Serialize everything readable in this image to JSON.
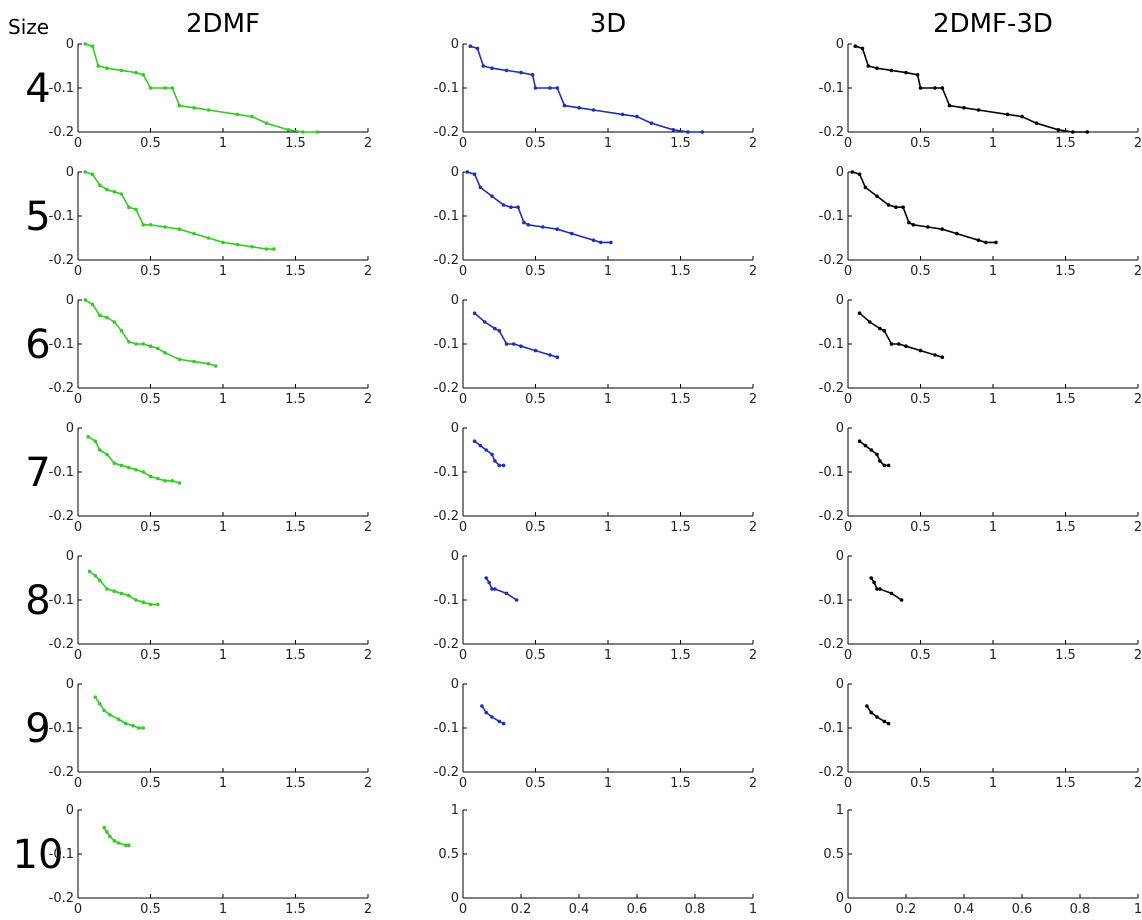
{
  "header": {
    "row_header": "Size"
  },
  "columns": [
    {
      "title": "2DMF",
      "color": "#33cc22"
    },
    {
      "title": "3D",
      "color": "#1f2fb8"
    },
    {
      "title": "2DMF-3D",
      "color": "#000000"
    }
  ],
  "rows": [
    "4",
    "5",
    "6",
    "7",
    "8",
    "9",
    "10"
  ],
  "chart_data": {
    "type": "line",
    "panels": [
      {
        "row": "4",
        "column": "2DMF",
        "x": [
          0.05,
          0.1,
          0.14,
          0.2,
          0.3,
          0.4,
          0.45,
          0.5,
          0.6,
          0.65,
          0.7,
          0.8,
          0.9,
          1.1,
          1.2,
          1.3,
          1.45,
          1.55,
          1.65
        ],
        "y": [
          0,
          -0.005,
          -0.05,
          -0.055,
          -0.06,
          -0.065,
          -0.07,
          -0.1,
          -0.1,
          -0.1,
          -0.14,
          -0.145,
          -0.15,
          -0.16,
          -0.165,
          -0.18,
          -0.195,
          -0.2,
          -0.2
        ]
      },
      {
        "row": "4",
        "column": "3D",
        "x": [
          0.05,
          0.1,
          0.14,
          0.2,
          0.3,
          0.4,
          0.48,
          0.5,
          0.6,
          0.65,
          0.7,
          0.8,
          0.9,
          1.1,
          1.2,
          1.3,
          1.45,
          1.55,
          1.65
        ],
        "y": [
          -0.005,
          -0.01,
          -0.05,
          -0.055,
          -0.06,
          -0.065,
          -0.07,
          -0.1,
          -0.1,
          -0.1,
          -0.14,
          -0.145,
          -0.15,
          -0.16,
          -0.165,
          -0.18,
          -0.195,
          -0.2,
          -0.2
        ]
      },
      {
        "row": "4",
        "column": "2DMF-3D",
        "x": [
          0.05,
          0.1,
          0.14,
          0.2,
          0.3,
          0.4,
          0.48,
          0.5,
          0.6,
          0.65,
          0.7,
          0.8,
          0.9,
          1.1,
          1.2,
          1.3,
          1.45,
          1.55,
          1.65
        ],
        "y": [
          -0.005,
          -0.01,
          -0.05,
          -0.055,
          -0.06,
          -0.065,
          -0.07,
          -0.1,
          -0.1,
          -0.1,
          -0.14,
          -0.145,
          -0.15,
          -0.16,
          -0.165,
          -0.18,
          -0.195,
          -0.2,
          -0.2
        ]
      },
      {
        "row": "5",
        "column": "2DMF",
        "x": [
          0.05,
          0.1,
          0.15,
          0.2,
          0.25,
          0.3,
          0.35,
          0.4,
          0.45,
          0.5,
          0.6,
          0.7,
          0.8,
          0.9,
          1.0,
          1.1,
          1.2,
          1.3,
          1.35
        ],
        "y": [
          0,
          -0.005,
          -0.03,
          -0.04,
          -0.045,
          -0.05,
          -0.08,
          -0.085,
          -0.12,
          -0.12,
          -0.125,
          -0.13,
          -0.14,
          -0.15,
          -0.16,
          -0.165,
          -0.17,
          -0.175,
          -0.175
        ]
      },
      {
        "row": "5",
        "column": "3D",
        "x": [
          0.03,
          0.08,
          0.12,
          0.2,
          0.28,
          0.33,
          0.38,
          0.42,
          0.45,
          0.55,
          0.65,
          0.75,
          0.9,
          0.95,
          1.02
        ],
        "y": [
          0,
          -0.005,
          -0.035,
          -0.055,
          -0.075,
          -0.08,
          -0.08,
          -0.115,
          -0.12,
          -0.125,
          -0.13,
          -0.14,
          -0.155,
          -0.16,
          -0.16
        ]
      },
      {
        "row": "5",
        "column": "2DMF-3D",
        "x": [
          0.03,
          0.08,
          0.12,
          0.2,
          0.28,
          0.33,
          0.38,
          0.42,
          0.45,
          0.55,
          0.65,
          0.75,
          0.9,
          0.95,
          1.02
        ],
        "y": [
          0,
          -0.005,
          -0.035,
          -0.055,
          -0.075,
          -0.08,
          -0.08,
          -0.115,
          -0.12,
          -0.125,
          -0.13,
          -0.14,
          -0.155,
          -0.16,
          -0.16
        ]
      },
      {
        "row": "6",
        "column": "2DMF",
        "x": [
          0.05,
          0.1,
          0.15,
          0.2,
          0.25,
          0.3,
          0.35,
          0.4,
          0.45,
          0.5,
          0.55,
          0.6,
          0.7,
          0.8,
          0.9,
          0.95
        ],
        "y": [
          0,
          -0.01,
          -0.035,
          -0.04,
          -0.05,
          -0.07,
          -0.095,
          -0.1,
          -0.1,
          -0.105,
          -0.11,
          -0.12,
          -0.135,
          -0.14,
          -0.145,
          -0.15
        ]
      },
      {
        "row": "6",
        "column": "3D",
        "x": [
          0.08,
          0.15,
          0.22,
          0.25,
          0.3,
          0.35,
          0.4,
          0.5,
          0.6,
          0.65
        ],
        "y": [
          -0.03,
          -0.05,
          -0.065,
          -0.07,
          -0.1,
          -0.1,
          -0.105,
          -0.115,
          -0.125,
          -0.13
        ]
      },
      {
        "row": "6",
        "column": "2DMF-3D",
        "x": [
          0.08,
          0.15,
          0.22,
          0.25,
          0.3,
          0.35,
          0.4,
          0.5,
          0.6,
          0.65
        ],
        "y": [
          -0.03,
          -0.05,
          -0.065,
          -0.07,
          -0.1,
          -0.1,
          -0.105,
          -0.115,
          -0.125,
          -0.13
        ]
      },
      {
        "row": "7",
        "column": "2DMF",
        "x": [
          0.07,
          0.12,
          0.15,
          0.2,
          0.25,
          0.3,
          0.35,
          0.4,
          0.45,
          0.5,
          0.55,
          0.6,
          0.65,
          0.7
        ],
        "y": [
          -0.02,
          -0.03,
          -0.05,
          -0.06,
          -0.08,
          -0.085,
          -0.09,
          -0.095,
          -0.1,
          -0.11,
          -0.115,
          -0.12,
          -0.12,
          -0.125
        ]
      },
      {
        "row": "7",
        "column": "3D",
        "x": [
          0.08,
          0.12,
          0.16,
          0.2,
          0.22,
          0.25,
          0.28
        ],
        "y": [
          -0.03,
          -0.04,
          -0.05,
          -0.06,
          -0.075,
          -0.085,
          -0.085
        ]
      },
      {
        "row": "7",
        "column": "2DMF-3D",
        "x": [
          0.08,
          0.12,
          0.16,
          0.2,
          0.22,
          0.25,
          0.28
        ],
        "y": [
          -0.03,
          -0.04,
          -0.05,
          -0.06,
          -0.075,
          -0.085,
          -0.085
        ]
      },
      {
        "row": "8",
        "column": "2DMF",
        "x": [
          0.08,
          0.12,
          0.15,
          0.2,
          0.25,
          0.3,
          0.35,
          0.4,
          0.45,
          0.5,
          0.55
        ],
        "y": [
          -0.035,
          -0.045,
          -0.055,
          -0.075,
          -0.08,
          -0.085,
          -0.09,
          -0.1,
          -0.105,
          -0.11,
          -0.11
        ]
      },
      {
        "row": "8",
        "column": "3D",
        "x": [
          0.16,
          0.18,
          0.2,
          0.22,
          0.3,
          0.37
        ],
        "y": [
          -0.05,
          -0.06,
          -0.075,
          -0.075,
          -0.085,
          -0.1
        ]
      },
      {
        "row": "8",
        "column": "2DMF-3D",
        "x": [
          0.16,
          0.18,
          0.2,
          0.22,
          0.3,
          0.37
        ],
        "y": [
          -0.05,
          -0.06,
          -0.075,
          -0.075,
          -0.085,
          -0.1
        ]
      },
      {
        "row": "9",
        "column": "2DMF",
        "x": [
          0.12,
          0.15,
          0.18,
          0.22,
          0.28,
          0.33,
          0.38,
          0.42,
          0.45
        ],
        "y": [
          -0.03,
          -0.045,
          -0.06,
          -0.07,
          -0.08,
          -0.09,
          -0.095,
          -0.1,
          -0.1
        ]
      },
      {
        "row": "9",
        "column": "3D",
        "x": [
          0.13,
          0.16,
          0.2,
          0.25,
          0.28
        ],
        "y": [
          -0.05,
          -0.065,
          -0.075,
          -0.085,
          -0.09
        ]
      },
      {
        "row": "9",
        "column": "2DMF-3D",
        "x": [
          0.13,
          0.16,
          0.2,
          0.25,
          0.28
        ],
        "y": [
          -0.05,
          -0.065,
          -0.075,
          -0.085,
          -0.09
        ]
      },
      {
        "row": "10",
        "column": "2DMF",
        "x": [
          0.18,
          0.2,
          0.22,
          0.25,
          0.28,
          0.33,
          0.35
        ],
        "y": [
          -0.04,
          -0.05,
          -0.06,
          -0.07,
          -0.075,
          -0.08,
          -0.08
        ]
      },
      {
        "row": "10",
        "column": "3D",
        "x": [],
        "y": []
      },
      {
        "row": "10",
        "column": "2DMF-3D",
        "x": [],
        "y": []
      }
    ],
    "axes": {
      "standard": {
        "xlim": [
          0,
          2
        ],
        "ylim": [
          -0.2,
          0
        ],
        "xticks": [
          "0",
          "0.5",
          "1",
          "1.5",
          "2"
        ],
        "yticks": [
          "0",
          "-0.1",
          "-0.2"
        ]
      },
      "empty": {
        "xlim": [
          0,
          1
        ],
        "ylim": [
          0,
          1
        ],
        "xticks": [
          "0",
          "0.2",
          "0.4",
          "0.6",
          "0.8",
          "1"
        ],
        "yticks": [
          "0",
          "0.5",
          "1"
        ]
      }
    },
    "grid": false
  }
}
